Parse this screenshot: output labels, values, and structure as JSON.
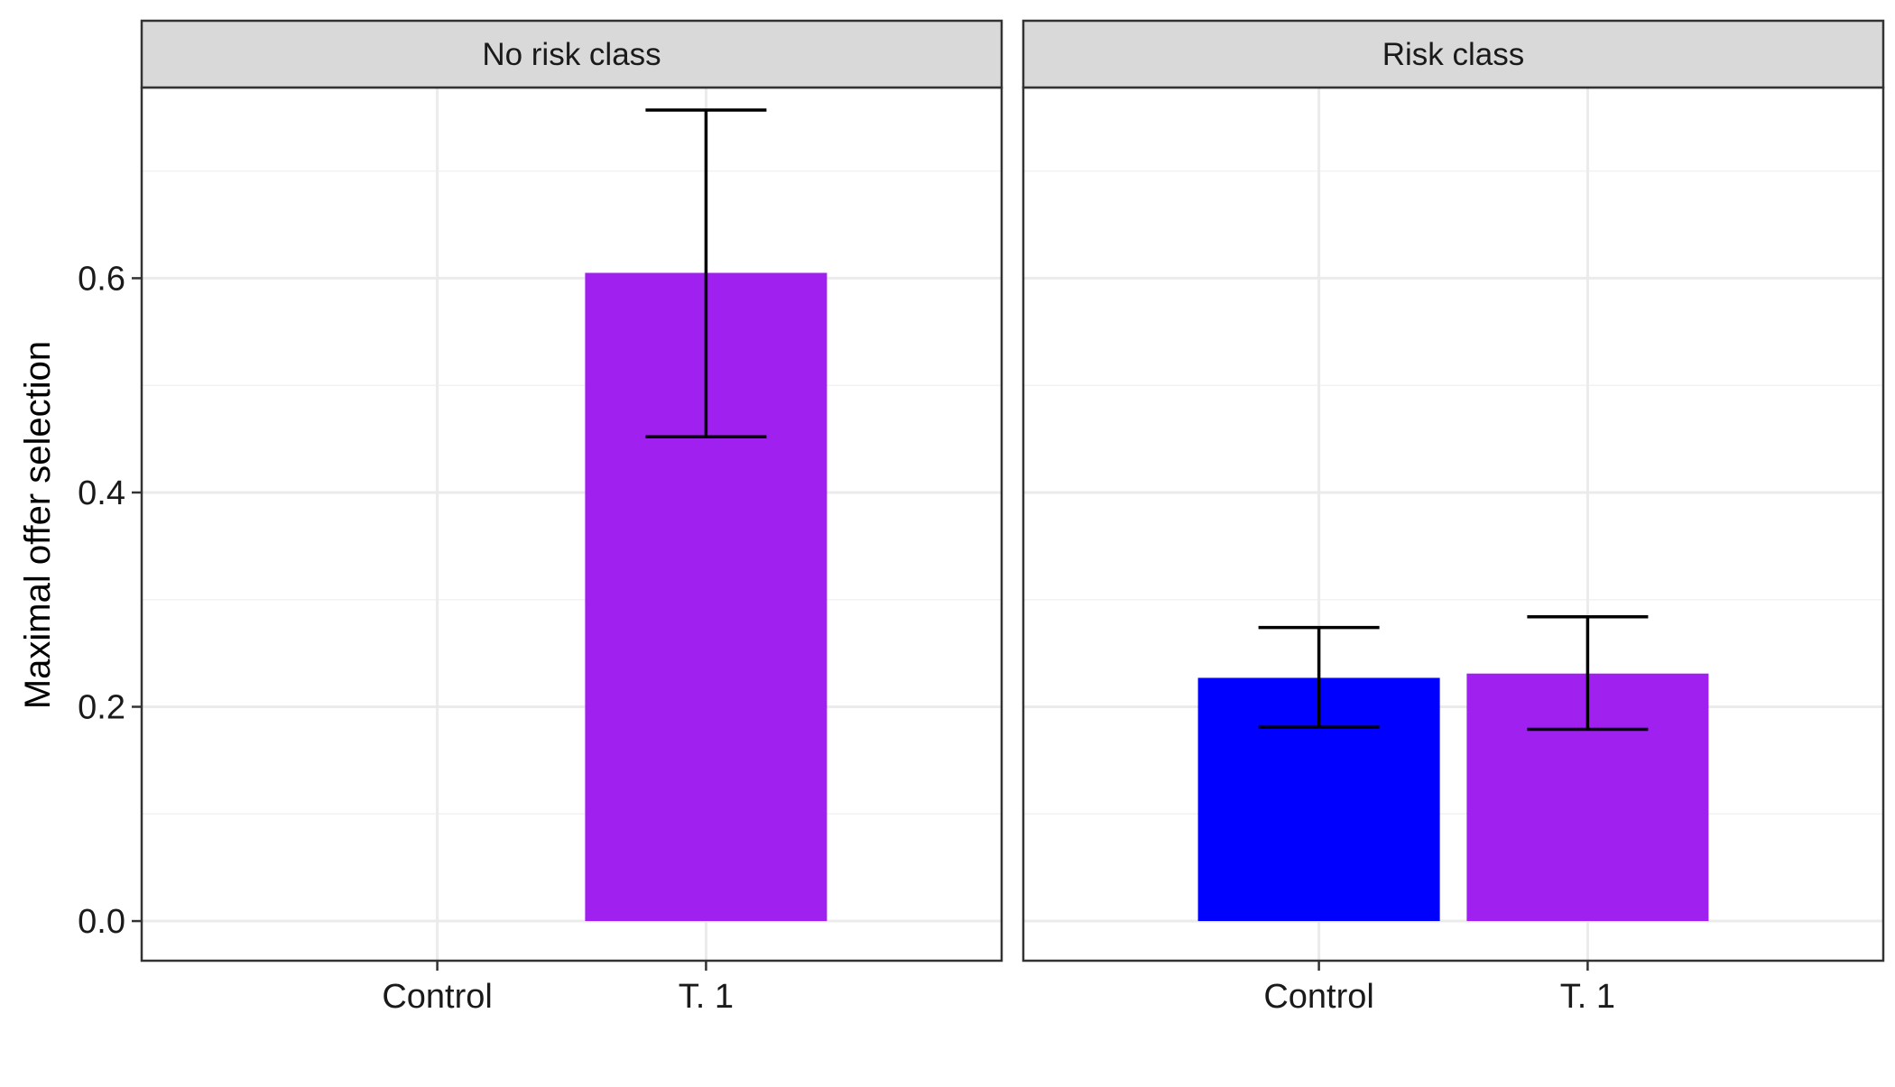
{
  "chart_data": {
    "type": "bar",
    "ylabel": "Maximal offer selection",
    "xlabel": "",
    "ylim": [
      -0.037,
      0.778
    ],
    "yticks": [
      0.0,
      0.2,
      0.4,
      0.6
    ],
    "ytick_labels": [
      "0.0",
      "0.2",
      "0.4",
      "0.6"
    ],
    "categories": [
      "Control",
      "T. 1"
    ],
    "grid": true,
    "legend": "none",
    "colors": {
      "Control": "#0000ff",
      "T. 1": "#a020f0"
    },
    "panels": [
      {
        "title": "No risk class",
        "bars": [
          {
            "category": "T. 1",
            "value": 0.605,
            "err_low": 0.452,
            "err_high": 0.757
          }
        ]
      },
      {
        "title": "Risk class",
        "bars": [
          {
            "category": "Control",
            "value": 0.227,
            "err_low": 0.181,
            "err_high": 0.274
          },
          {
            "category": "T. 1",
            "value": 0.231,
            "err_low": 0.179,
            "err_high": 0.284
          }
        ]
      }
    ]
  }
}
